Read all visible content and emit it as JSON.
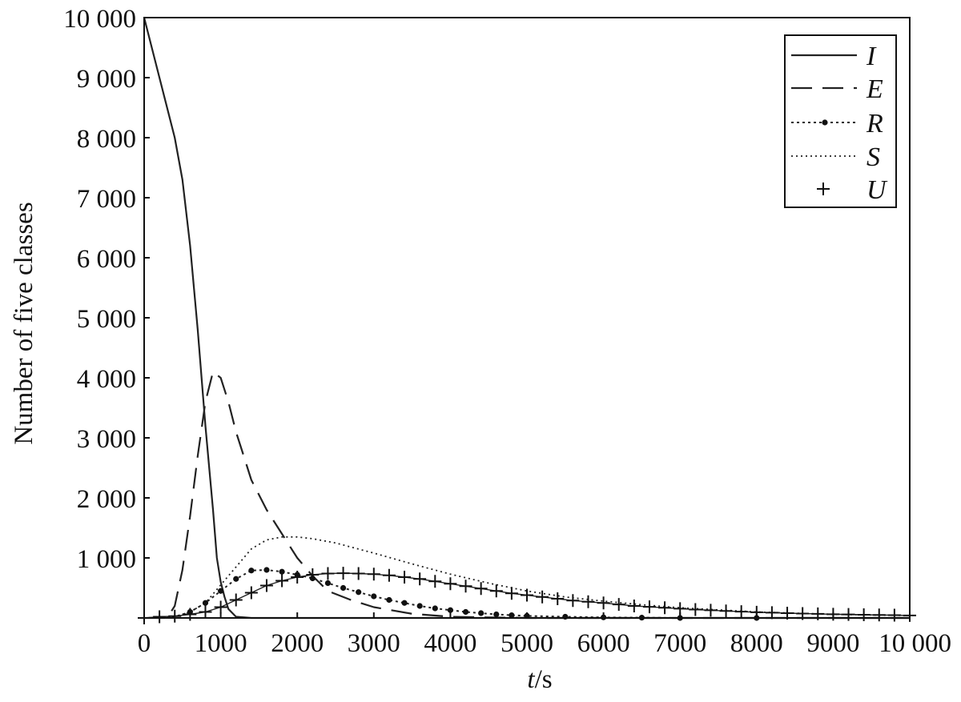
{
  "chart_data": {
    "type": "line",
    "xlabel_italic": "t",
    "xlabel_unit": "/s",
    "ylabel": "Number of five classes",
    "xlim": [
      0,
      10000
    ],
    "ylim": [
      0,
      10000
    ],
    "x_ticks": [
      0,
      1000,
      2000,
      3000,
      4000,
      5000,
      6000,
      7000,
      8000,
      9000,
      10000
    ],
    "x_tick_labels": [
      "0",
      "1000",
      "2000",
      "3000",
      "4000",
      "5000",
      "6000",
      "7000",
      "8000",
      "9000",
      "10 000"
    ],
    "y_ticks": [
      1000,
      2000,
      3000,
      4000,
      5000,
      6000,
      7000,
      8000,
      9000,
      10000
    ],
    "y_tick_labels": [
      "1 000",
      "2 000",
      "3 000",
      "4 000",
      "5 000",
      "6 000",
      "7 000",
      "8 000",
      "9 000",
      "10 000"
    ],
    "grid": false,
    "legend_position": "top-right",
    "series": [
      {
        "name": "I",
        "style": "solid",
        "x": [
          0,
          200,
          400,
          500,
          600,
          700,
          800,
          900,
          950,
          1000,
          1050,
          1100,
          1200,
          1400,
          2000,
          10000
        ],
        "y": [
          10000,
          9000,
          8000,
          7300,
          6200,
          4800,
          3200,
          1800,
          1000,
          600,
          350,
          150,
          20,
          0,
          0,
          0
        ]
      },
      {
        "name": "E",
        "style": "dashed",
        "x": [
          0,
          300,
          400,
          500,
          600,
          700,
          800,
          900,
          1000,
          1100,
          1200,
          1300,
          1400,
          1600,
          1800,
          2000,
          2200,
          2400,
          2700,
          3000,
          3500,
          4000,
          5000,
          10000
        ],
        "y": [
          0,
          0,
          200,
          800,
          1700,
          2700,
          3600,
          4100,
          4000,
          3600,
          3100,
          2700,
          2300,
          1800,
          1400,
          1000,
          700,
          450,
          300,
          180,
          70,
          20,
          0,
          0
        ]
      },
      {
        "name": "R",
        "style": "dotted-markers",
        "x": [
          0,
          200,
          400,
          600,
          800,
          1000,
          1200,
          1400,
          1600,
          1800,
          2000,
          2200,
          2400,
          2600,
          2800,
          3000,
          3200,
          3400,
          3600,
          3800,
          4000,
          4200,
          4400,
          4600,
          4800,
          5000,
          5500,
          6000,
          6500,
          7000,
          8000,
          9000,
          10000
        ],
        "y": [
          0,
          0,
          20,
          100,
          250,
          450,
          650,
          790,
          800,
          770,
          720,
          660,
          580,
          500,
          430,
          360,
          300,
          250,
          200,
          160,
          130,
          100,
          80,
          60,
          45,
          35,
          20,
          10,
          5,
          0,
          0,
          0,
          0
        ]
      },
      {
        "name": "S",
        "style": "dotted",
        "x": [
          0,
          400,
          600,
          800,
          1000,
          1200,
          1400,
          1600,
          1800,
          2000,
          2200,
          2500,
          3000,
          3500,
          4000,
          4500,
          5000,
          5500,
          6000,
          6500,
          7000,
          8000,
          9000,
          10000
        ],
        "y": [
          0,
          20,
          100,
          250,
          550,
          850,
          1150,
          1300,
          1350,
          1350,
          1320,
          1250,
          1080,
          900,
          730,
          580,
          450,
          350,
          280,
          220,
          170,
          100,
          60,
          40
        ]
      },
      {
        "name": "U",
        "style": "plus-markers",
        "x": [
          0,
          200,
          400,
          600,
          800,
          1000,
          1200,
          1400,
          1600,
          1800,
          2000,
          2200,
          2400,
          2600,
          2800,
          3000,
          3200,
          3400,
          3600,
          3800,
          4000,
          4200,
          4400,
          4600,
          4800,
          5000,
          5200,
          5400,
          5600,
          5800,
          6000,
          6200,
          6400,
          6600,
          6800,
          7000,
          7200,
          7400,
          7600,
          7800,
          8000,
          8200,
          8400,
          8600,
          8800,
          9000,
          9200,
          9400,
          9600,
          9800,
          10000
        ],
        "y": [
          0,
          20,
          30,
          60,
          100,
          180,
          300,
          420,
          540,
          620,
          680,
          720,
          740,
          745,
          740,
          730,
          710,
          680,
          650,
          610,
          570,
          530,
          490,
          450,
          410,
          380,
          350,
          320,
          290,
          270,
          250,
          225,
          200,
          185,
          170,
          155,
          140,
          128,
          116,
          105,
          95,
          88,
          80,
          74,
          68,
          62,
          58,
          54,
          50,
          46,
          42
        ]
      }
    ]
  }
}
